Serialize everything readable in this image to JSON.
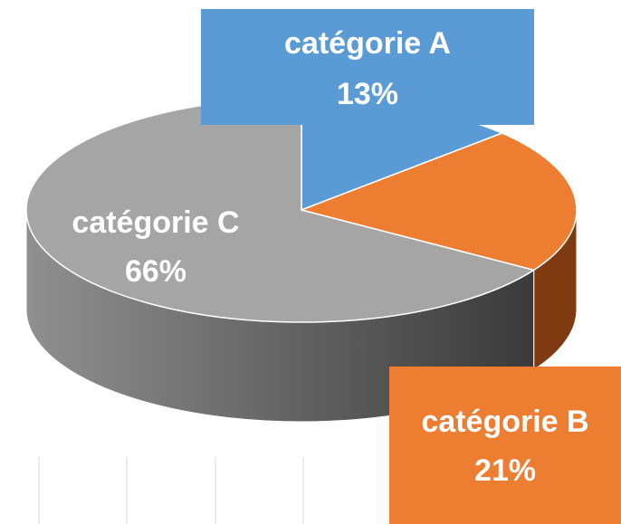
{
  "chart_data": {
    "type": "pie3d",
    "categories": [
      "catégorie A",
      "catégorie B",
      "catégorie C"
    ],
    "values": [
      13,
      21,
      66
    ],
    "value_labels": [
      "13%",
      "21%",
      "66%"
    ],
    "colors": [
      "#5b9bd5",
      "#ed7d31",
      "#a5a5a5"
    ]
  }
}
